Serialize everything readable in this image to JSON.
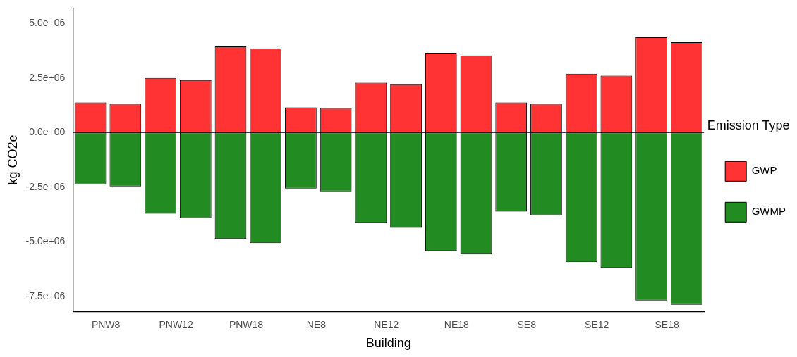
{
  "chart_data": {
    "type": "bar",
    "xlabel": "Building",
    "ylabel": "kg CO2e",
    "legend_title": "Emission Type",
    "categories": [
      "PNW8",
      null,
      "PNW12",
      null,
      "PNW18",
      null,
      "NE8",
      null,
      "NE12",
      null,
      "NE18",
      null,
      "SE8",
      null,
      "SE12",
      null,
      "SE18",
      null
    ],
    "series": [
      {
        "name": "GWP",
        "color": "#ff3333",
        "values": [
          1380000,
          1310000,
          2500000,
          2400000,
          3940000,
          3850000,
          1150000,
          1120000,
          2280000,
          2210000,
          3650000,
          3530000,
          1380000,
          1310000,
          2690000,
          2600000,
          4360000,
          4130000
        ]
      },
      {
        "name": "GWMP",
        "color": "#228b22",
        "values": [
          -2370000,
          -2470000,
          -3720000,
          -3910000,
          -4870000,
          -5060000,
          -2560000,
          -2690000,
          -4130000,
          -4360000,
          -5420000,
          -5580000,
          -3620000,
          -3780000,
          -5930000,
          -6190000,
          -7690000,
          -7880000
        ]
      }
    ],
    "stacked": true,
    "ylim": [
      -8200000,
      5700000
    ],
    "yticks": [
      {
        "value": -7500000,
        "label": "-7.5e+06"
      },
      {
        "value": -5000000,
        "label": "-5.0e+06"
      },
      {
        "value": -2500000,
        "label": "-2.5e+06"
      },
      {
        "value": 0,
        "label": "0.0e+00"
      },
      {
        "value": 2500000,
        "label": "2.5e+06"
      },
      {
        "value": 5000000,
        "label": "5.0e+06"
      }
    ],
    "ref_lines": [
      {
        "axis": "y",
        "value": 0,
        "color": "#000000"
      }
    ],
    "grid": false,
    "legend": "right"
  }
}
